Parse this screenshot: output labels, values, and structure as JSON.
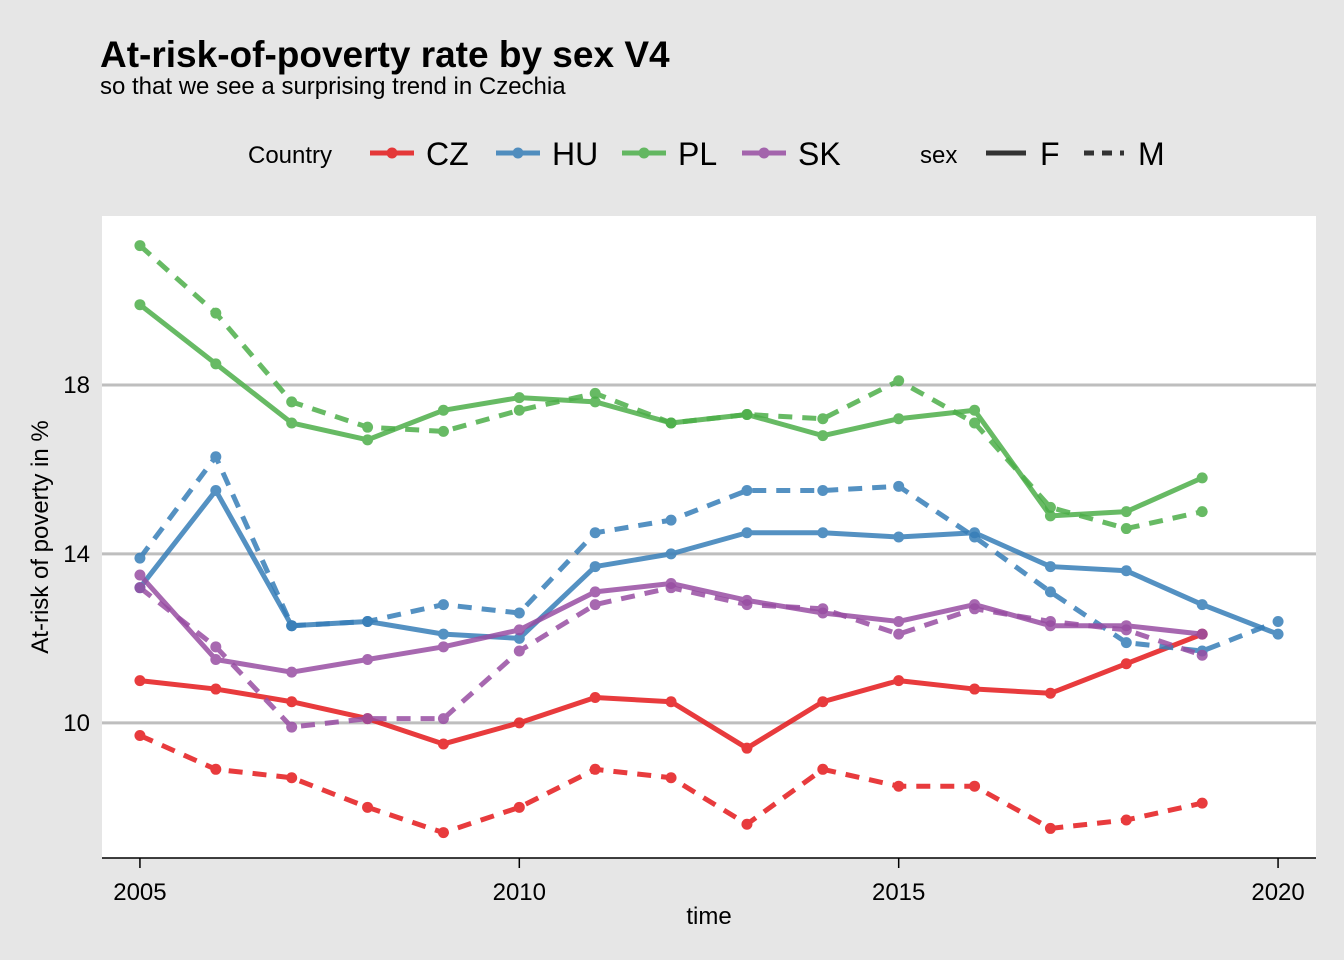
{
  "chart_data": {
    "type": "line",
    "title": "At-risk-of-poverty rate by sex V4",
    "subtitle": "so that we see a surprising trend in Czechia",
    "xlabel": "time",
    "ylabel": "At-risk of poverty in %",
    "xlim": [
      2004.5,
      2020.5
    ],
    "ylim": [
      6.8,
      22.0
    ],
    "x_ticks": [
      "2005",
      "2010",
      "2015",
      "2020"
    ],
    "y_ticks": [
      "10",
      "14",
      "18"
    ],
    "grid": "horizontal-major",
    "legend_placement": "top",
    "legend": {
      "country_title": "Country",
      "countries": [
        {
          "key": "CZ",
          "label": "CZ",
          "color": "#e41a1c"
        },
        {
          "key": "HU",
          "label": "HU",
          "color": "#377eb8"
        },
        {
          "key": "PL",
          "label": "PL",
          "color": "#4daf4a"
        },
        {
          "key": "SK",
          "label": "SK",
          "color": "#984ea3"
        }
      ],
      "sex_title": "sex",
      "sexes": [
        {
          "key": "F",
          "label": "F",
          "linetype": "solid"
        },
        {
          "key": "M",
          "label": "M",
          "linetype": "dashed"
        }
      ]
    },
    "series": [
      {
        "country": "CZ",
        "sex": "F",
        "x": [
          2005,
          2006,
          2007,
          2008,
          2009,
          2010,
          2011,
          2012,
          2013,
          2014,
          2015,
          2016,
          2017,
          2018,
          2019
        ],
        "values": [
          11.0,
          10.8,
          10.5,
          10.1,
          9.5,
          10.0,
          10.6,
          10.5,
          9.4,
          10.5,
          11.0,
          10.8,
          10.7,
          11.4,
          12.1
        ]
      },
      {
        "country": "CZ",
        "sex": "M",
        "x": [
          2005,
          2006,
          2007,
          2008,
          2009,
          2010,
          2011,
          2012,
          2013,
          2014,
          2015,
          2016,
          2017,
          2018,
          2019
        ],
        "values": [
          9.7,
          8.9,
          8.7,
          8.0,
          7.4,
          8.0,
          8.9,
          8.7,
          7.6,
          8.9,
          8.5,
          8.5,
          7.5,
          7.7,
          8.1
        ]
      },
      {
        "country": "HU",
        "sex": "F",
        "x": [
          2005,
          2006,
          2007,
          2008,
          2009,
          2010,
          2011,
          2012,
          2013,
          2014,
          2015,
          2016,
          2017,
          2018,
          2019,
          2020
        ],
        "values": [
          13.2,
          15.5,
          12.3,
          12.4,
          12.1,
          12.0,
          13.7,
          14.0,
          14.5,
          14.5,
          14.4,
          14.5,
          13.7,
          13.6,
          12.8,
          12.1
        ]
      },
      {
        "country": "HU",
        "sex": "M",
        "x": [
          2005,
          2006,
          2007,
          2008,
          2009,
          2010,
          2011,
          2012,
          2013,
          2014,
          2015,
          2016,
          2017,
          2018,
          2019,
          2020
        ],
        "values": [
          13.9,
          16.3,
          12.3,
          12.4,
          12.8,
          12.6,
          14.5,
          14.8,
          15.5,
          15.5,
          15.6,
          14.4,
          13.1,
          11.9,
          11.7,
          12.4
        ]
      },
      {
        "country": "PL",
        "sex": "F",
        "x": [
          2005,
          2006,
          2007,
          2008,
          2009,
          2010,
          2011,
          2012,
          2013,
          2014,
          2015,
          2016,
          2017,
          2018,
          2019
        ],
        "values": [
          19.9,
          18.5,
          17.1,
          16.7,
          17.4,
          17.7,
          17.6,
          17.1,
          17.3,
          16.8,
          17.2,
          17.4,
          14.9,
          15.0,
          15.8
        ]
      },
      {
        "country": "PL",
        "sex": "M",
        "x": [
          2005,
          2006,
          2007,
          2008,
          2009,
          2010,
          2011,
          2012,
          2013,
          2014,
          2015,
          2016,
          2017,
          2018,
          2019
        ],
        "values": [
          21.3,
          19.7,
          17.6,
          17.0,
          16.9,
          17.4,
          17.8,
          17.1,
          17.3,
          17.2,
          18.1,
          17.1,
          15.1,
          14.6,
          15.0
        ]
      },
      {
        "country": "SK",
        "sex": "F",
        "x": [
          2005,
          2006,
          2007,
          2008,
          2009,
          2010,
          2011,
          2012,
          2013,
          2014,
          2015,
          2016,
          2017,
          2018,
          2019
        ],
        "values": [
          13.5,
          11.5,
          11.2,
          11.5,
          11.8,
          12.2,
          13.1,
          13.3,
          12.9,
          12.6,
          12.4,
          12.8,
          12.3,
          12.3,
          12.1
        ]
      },
      {
        "country": "SK",
        "sex": "M",
        "x": [
          2005,
          2006,
          2007,
          2008,
          2009,
          2010,
          2011,
          2012,
          2013,
          2014,
          2015,
          2016,
          2017,
          2018,
          2019
        ],
        "values": [
          13.2,
          11.8,
          9.9,
          10.1,
          10.1,
          11.7,
          12.8,
          13.2,
          12.8,
          12.7,
          12.1,
          12.7,
          12.4,
          12.2,
          11.6
        ]
      }
    ]
  }
}
